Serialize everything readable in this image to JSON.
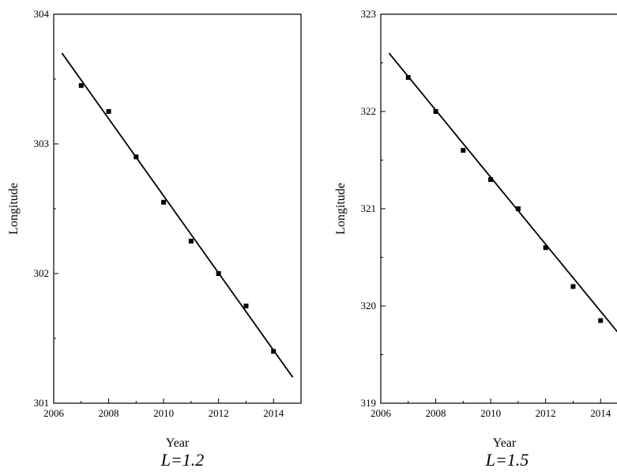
{
  "chart_data": [
    {
      "type": "scatter",
      "caption": "L=1.2",
      "xlabel": "Year",
      "ylabel": "Longitude",
      "xlim": [
        2006,
        2015
      ],
      "ylim": [
        301,
        304
      ],
      "xticks": [
        2006,
        2008,
        2010,
        2012,
        2014
      ],
      "yticks": [
        301,
        302,
        303,
        304
      ],
      "xtick_labels": [
        "2006",
        "2008",
        "2010",
        "2012",
        "2014"
      ],
      "ytick_labels": [
        "301",
        "302",
        "303",
        "304"
      ],
      "grid": false,
      "series": [
        {
          "type": "scatter",
          "marker": "square",
          "x": [
            2007,
            2008,
            2009,
            2010,
            2011,
            2012,
            2013,
            2014
          ],
          "y": [
            303.45,
            303.25,
            302.9,
            302.55,
            302.25,
            302.0,
            301.75,
            301.4
          ]
        },
        {
          "type": "line",
          "x": [
            2006.3,
            2014.7
          ],
          "y": [
            303.7,
            301.2
          ]
        }
      ]
    },
    {
      "type": "scatter",
      "caption": "L=1.5",
      "xlabel": "Year",
      "ylabel": "Longitude",
      "xlim": [
        2006,
        2015
      ],
      "ylim": [
        319,
        323
      ],
      "xticks": [
        2006,
        2008,
        2010,
        2012,
        2014
      ],
      "yticks": [
        319,
        320,
        321,
        322,
        323
      ],
      "xtick_labels": [
        "2006",
        "2008",
        "2010",
        "2012",
        "2014"
      ],
      "ytick_labels": [
        "319",
        "320",
        "321",
        "322",
        "323"
      ],
      "grid": false,
      "series": [
        {
          "type": "scatter",
          "marker": "square",
          "x": [
            2007,
            2008,
            2009,
            2010,
            2011,
            2012,
            2013,
            2014
          ],
          "y": [
            322.35,
            322.0,
            321.6,
            321.3,
            321.0,
            320.6,
            320.2,
            319.85
          ]
        },
        {
          "type": "line",
          "x": [
            2006.3,
            2015
          ],
          "y": [
            322.6,
            319.6
          ]
        }
      ]
    }
  ]
}
